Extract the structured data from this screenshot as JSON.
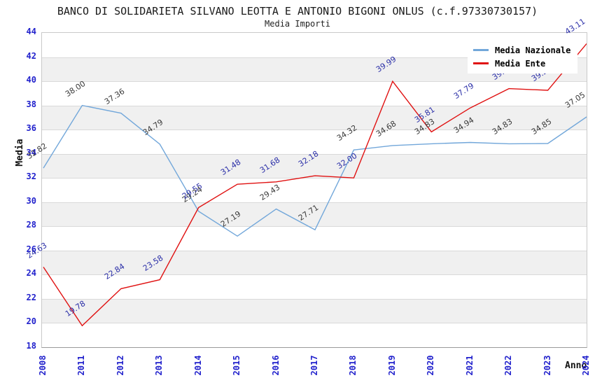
{
  "header": {
    "title": "BANCO DI SOLIDARIETA SILVANO LEOTTA E ANTONIO BIGONI ONLUS (c.f.97330730157)",
    "subtitle": "Media Importi"
  },
  "legend": [
    {
      "label": "Media Nazionale",
      "color": "#72a7da"
    },
    {
      "label": "Media Ente",
      "color": "#e01212"
    }
  ],
  "axis": {
    "y_title": "Media",
    "x_title": "Anno",
    "tick_color": "#2121cc"
  },
  "chart_data": {
    "type": "line",
    "title": "BANCO DI SOLIDARIETA SILVANO LEOTTA E ANTONIO BIGONI ONLUS (c.f.97330730157)",
    "subtitle": "Media Importi",
    "xlabel": "Anno",
    "ylabel": "Media",
    "ylim": [
      18,
      44
    ],
    "ytick_step": 2,
    "grid": "alternating-horizontal-bands",
    "legend_position": "top-right",
    "categories": [
      "2008",
      "2011",
      "2012",
      "2013",
      "2014",
      "2015",
      "2016",
      "2017",
      "2018",
      "2019",
      "2020",
      "2021",
      "2022",
      "2023",
      "2024"
    ],
    "series": [
      {
        "name": "Media Nazionale",
        "color": "#72a7da",
        "label_color": "#3a3a3a",
        "values": [
          32.82,
          38.0,
          37.36,
          34.79,
          29.24,
          27.19,
          29.43,
          27.71,
          34.32,
          34.68,
          34.83,
          34.94,
          34.83,
          34.85,
          37.05
        ]
      },
      {
        "name": "Media Ente",
        "color": "#e01212",
        "label_color": "#2b2fa8",
        "values": [
          24.63,
          19.78,
          22.84,
          23.58,
          29.55,
          31.48,
          31.68,
          32.18,
          32.0,
          39.99,
          35.81,
          37.79,
          39.39,
          39.25,
          43.11
        ]
      }
    ],
    "band_colors": [
      "#ffffff",
      "#f0f0f0"
    ]
  }
}
